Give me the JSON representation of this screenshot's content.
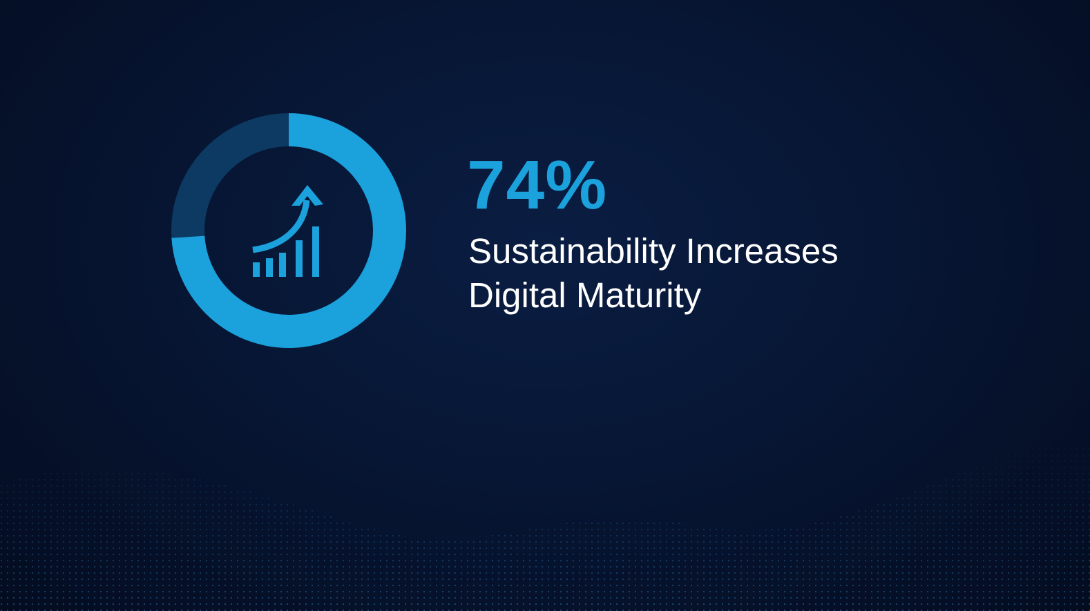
{
  "chart_data": {
    "type": "donut",
    "values": [
      74
    ],
    "value_labels": [
      "74%"
    ],
    "label": "Sustainability Increases Digital Maturity",
    "color": "#1ba1db"
  }
}
